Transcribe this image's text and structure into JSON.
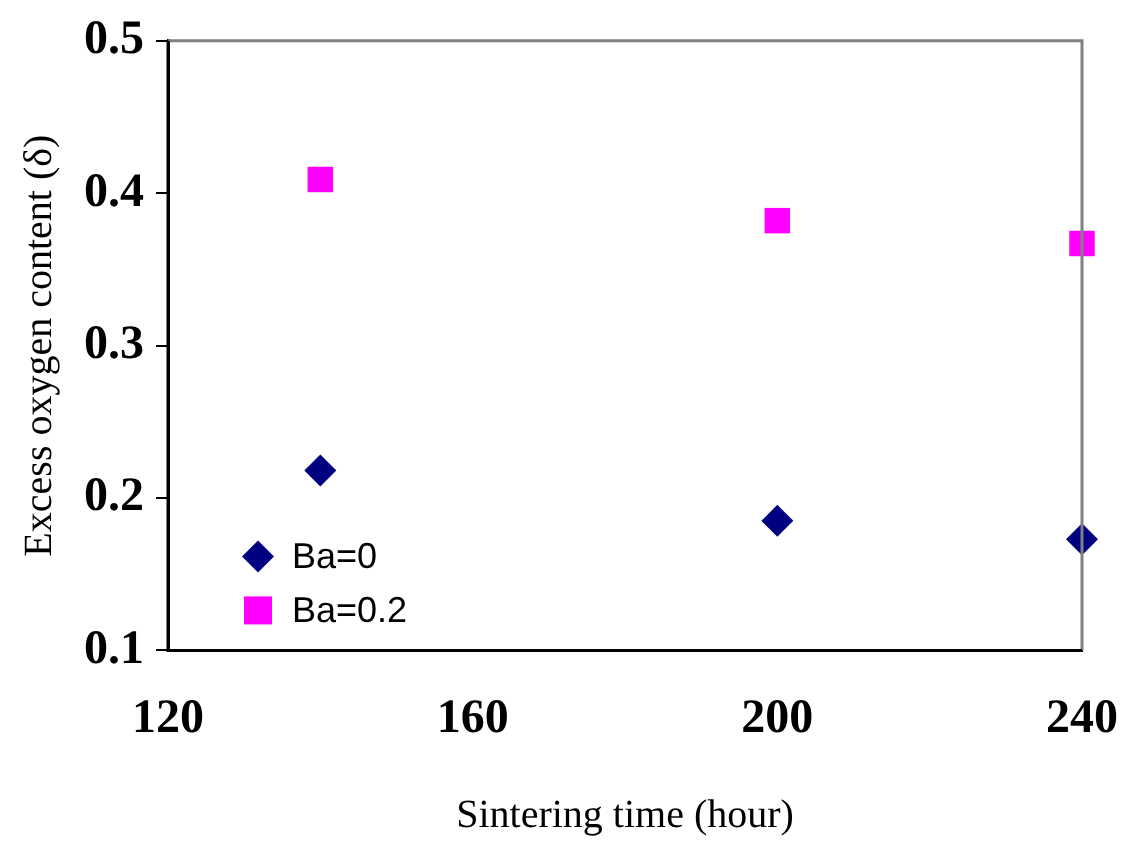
{
  "chart_data": {
    "type": "scatter",
    "xlabel": "Sintering time (hour)",
    "ylabel": "Excess oxygen content (δ)",
    "x": [
      140,
      200,
      240
    ],
    "xlim": [
      120,
      240
    ],
    "xticks": [
      120,
      160,
      200,
      240
    ],
    "ylim": [
      0.1,
      0.5
    ],
    "yticks": [
      0.1,
      0.2,
      0.3,
      0.4,
      0.5
    ],
    "grid": false,
    "legend": "bottom left",
    "series": [
      {
        "name": "Ba=0",
        "color": "#000080",
        "marker": "diamond",
        "values": [
          0.218,
          0.185,
          0.173
        ]
      },
      {
        "name": "Ba=0.2",
        "color": "#ff00ff",
        "marker": "square",
        "values": [
          0.409,
          0.382,
          0.367
        ]
      }
    ]
  }
}
